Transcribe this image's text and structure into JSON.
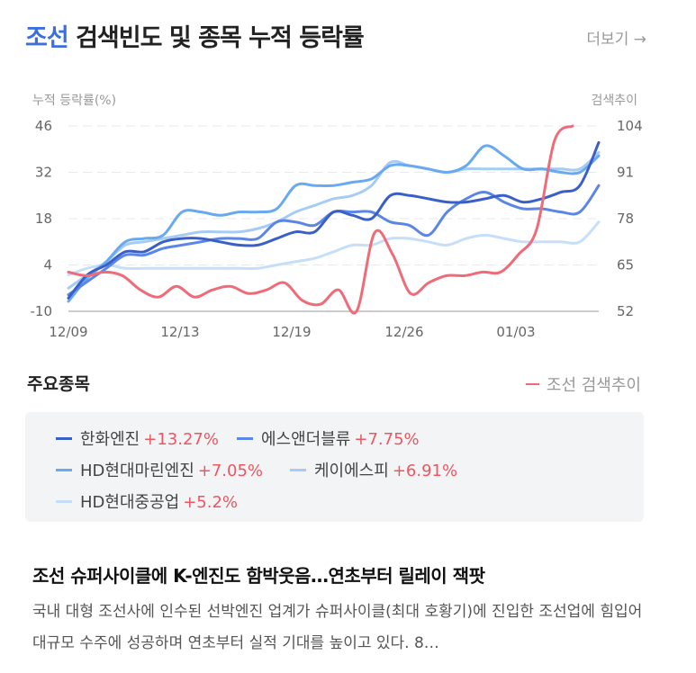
{
  "header": {
    "keyword": "조선",
    "title_rest": "검색빈도 및 종목 누적 등락률",
    "more_label": "더보기 →"
  },
  "chart_data": {
    "type": "line",
    "y_left_label": "누적 등락률(%)",
    "y_right_label": "검색추이",
    "y_left_ticks": [
      "46",
      "32",
      "18",
      "4",
      "-10"
    ],
    "y_right_ticks": [
      "104",
      "91",
      "78",
      "65",
      "52"
    ],
    "y_left_range": [
      -10,
      46
    ],
    "y_right_range": [
      52,
      104
    ],
    "x_ticks": [
      "12/09",
      "12/13",
      "12/19",
      "12/26",
      "01/03"
    ],
    "grid": true,
    "series": [
      {
        "name": "한화엔진",
        "axis": "left",
        "color": "#3b5fc8",
        "values": [
          -6,
          1,
          4,
          8,
          8,
          11,
          12,
          12,
          11,
          10,
          10,
          12,
          14,
          14,
          20,
          19,
          18,
          25,
          25,
          24,
          23,
          23,
          24,
          25,
          23,
          24,
          26,
          28,
          41
        ]
      },
      {
        "name": "에스앤더블류",
        "axis": "left",
        "color": "#5b86e5",
        "values": [
          -5,
          -1,
          3,
          7,
          7,
          9,
          10,
          11,
          12,
          12,
          12,
          17,
          17,
          16,
          20,
          20,
          20,
          17,
          16,
          13,
          20,
          24,
          26,
          23,
          21,
          21,
          20,
          20,
          28
        ]
      },
      {
        "name": "HD현대마린엔진",
        "axis": "left",
        "color": "#69a9ef",
        "values": [
          -7,
          0,
          5,
          11,
          12,
          13,
          20,
          20,
          19,
          20,
          20,
          21,
          28,
          28,
          28,
          29,
          30,
          34,
          34,
          33,
          32,
          34,
          40,
          37,
          33,
          33,
          32,
          32,
          37
        ]
      },
      {
        "name": "케이에스피",
        "axis": "left",
        "color": "#a6ccf5",
        "values": [
          -3,
          1,
          5,
          10,
          11,
          12,
          13,
          14,
          14,
          14,
          15,
          17,
          20,
          22,
          24,
          25,
          28,
          35,
          34,
          33,
          32,
          33,
          33,
          33,
          33,
          33,
          33,
          33,
          38
        ]
      },
      {
        "name": "HD현대중공업",
        "axis": "left",
        "color": "#c6def8",
        "values": [
          1,
          3,
          4,
          3,
          3,
          3,
          3,
          3,
          3,
          3,
          3,
          4,
          5,
          6,
          8,
          10,
          10,
          12,
          12,
          11,
          10,
          12,
          13,
          12,
          11,
          11,
          11,
          11,
          17
        ]
      },
      {
        "name": "조선 검색추이",
        "axis": "right",
        "color": "#ef6b78",
        "values": [
          63,
          62,
          63,
          62,
          58,
          56,
          59,
          56,
          58,
          59,
          57,
          58,
          60,
          55,
          54,
          58,
          52,
          74,
          68,
          57,
          60,
          62,
          62,
          63,
          63,
          68,
          75,
          100,
          104
        ]
      }
    ]
  },
  "section": {
    "title": "주요종목",
    "search_legend": "조선 검색추이"
  },
  "stocks": [
    {
      "name": "한화엔진",
      "change": "+13.27%",
      "color": "#3b5fc8"
    },
    {
      "name": "에스앤더블류",
      "change": "+7.75%",
      "color": "#5b86e5"
    },
    {
      "name": "HD현대마린엔진",
      "change": "+7.05%",
      "color": "#69a9ef"
    },
    {
      "name": "케이에스피",
      "change": "+6.91%",
      "color": "#a6ccf5"
    },
    {
      "name": "HD현대중공업",
      "change": "+5.2%",
      "color": "#c6def8"
    }
  ],
  "news": {
    "title": "조선 슈퍼사이클에 K-엔진도 함박웃음…연초부터 릴레이 잭팟",
    "body": "국내 대형 조선사에 인수된 선박엔진 업계가 슈퍼사이클(최대 호황기)에 진입한 조선업에 힘입어 대규모 수주에 성공하며 연초부터 실적 기대를 높이고 있다. 8…"
  }
}
